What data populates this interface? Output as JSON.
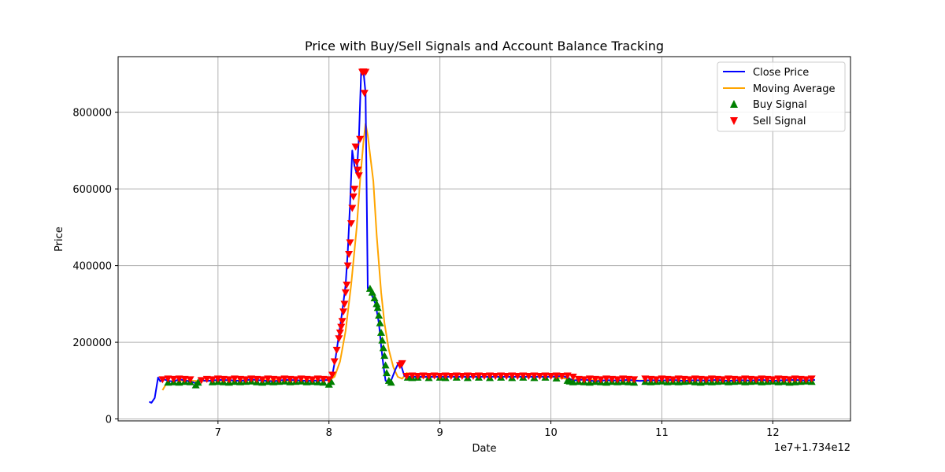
{
  "chart_data": {
    "type": "line",
    "title": "Price with Buy/Sell Signals and Account Balance Tracking",
    "xlabel": "Date",
    "ylabel": "Price",
    "x_offset_label": "1e7+1.734e12",
    "xlim": [
      6.1,
      12.7
    ],
    "ylim": [
      -5000,
      945000
    ],
    "x_ticks": [
      7,
      8,
      9,
      10,
      11,
      12
    ],
    "x_tick_labels": [
      "7",
      "8",
      "9",
      "10",
      "11",
      "12"
    ],
    "y_ticks": [
      0,
      200000,
      400000,
      600000,
      800000
    ],
    "y_tick_labels": [
      "0",
      "200000",
      "400000",
      "600000",
      "800000"
    ],
    "grid": true,
    "legend_position": "top-right",
    "legend": [
      "Close Price",
      "Moving Average",
      "Buy Signal",
      "Sell Signal"
    ],
    "colors": {
      "close": "#0000ff",
      "moving_average": "#ffa500",
      "buy": "#008000",
      "sell": "#ff0000"
    },
    "series": [
      {
        "name": "Close Price",
        "kind": "line",
        "x": [
          6.38,
          6.4,
          6.43,
          6.46,
          6.48,
          6.5,
          6.55,
          6.6,
          6.65,
          6.7,
          6.75,
          6.8,
          6.85,
          6.9,
          6.95,
          7.0,
          7.1,
          7.2,
          7.3,
          7.4,
          7.5,
          7.6,
          7.7,
          7.8,
          7.9,
          8.0,
          8.03,
          8.06,
          8.09,
          8.12,
          8.15,
          8.17,
          8.19,
          8.21,
          8.23,
          8.25,
          8.27,
          8.29,
          8.31,
          8.33,
          8.35,
          8.37,
          8.39,
          8.42,
          8.45,
          8.47,
          8.49,
          8.51,
          8.53,
          8.56,
          8.6,
          8.63,
          8.65,
          8.68,
          8.72,
          8.8,
          9.0,
          9.2,
          9.4,
          9.6,
          9.8,
          10.0,
          10.1,
          10.15,
          10.2,
          10.3,
          10.4,
          10.5,
          10.6,
          10.7,
          10.8,
          10.9,
          11.0,
          11.1,
          11.2,
          11.3,
          11.4,
          11.5,
          11.6,
          11.7,
          11.8,
          11.9,
          12.0,
          12.1,
          12.2,
          12.3,
          12.38
        ],
        "y": [
          45000,
          42000,
          55000,
          108000,
          98000,
          104000,
          100000,
          97000,
          104000,
          100000,
          98000,
          93000,
          101000,
          99000,
          100000,
          102000,
          101000,
          99000,
          103000,
          100000,
          98000,
          102000,
          101000,
          99000,
          100000,
          102000,
          115000,
          160000,
          220000,
          280000,
          350000,
          440000,
          560000,
          700000,
          660000,
          640000,
          735000,
          905000,
          910000,
          850000,
          340000,
          335000,
          320000,
          300000,
          250000,
          190000,
          140000,
          100000,
          95000,
          100000,
          130000,
          148000,
          140000,
          112000,
          110000,
          110000,
          110000,
          110000,
          110000,
          110000,
          110000,
          110000,
          112000,
          108000,
          100000,
          103000,
          98000,
          101000,
          100000,
          102000,
          99000,
          101000,
          100000,
          102000,
          99000,
          101000,
          100000,
          102000,
          99000,
          101000,
          100000,
          102000,
          99000,
          101000,
          102000,
          100000,
          102000
        ]
      },
      {
        "name": "Moving Average",
        "kind": "line",
        "x": [
          6.5,
          6.53,
          6.56,
          6.6,
          6.7,
          6.8,
          6.9,
          7.0,
          7.2,
          7.4,
          7.6,
          7.8,
          8.0,
          8.05,
          8.1,
          8.15,
          8.2,
          8.25,
          8.28,
          8.31,
          8.33,
          8.35,
          8.37,
          8.4,
          8.43,
          8.47,
          8.5,
          8.54,
          8.58,
          8.62,
          8.66,
          8.7,
          8.74,
          8.8,
          9.0,
          9.5,
          10.0,
          10.2,
          10.5,
          11.0,
          11.5,
          12.0,
          12.38
        ],
        "y": [
          75000,
          90000,
          98000,
          100000,
          100000,
          99000,
          99000,
          100000,
          100000,
          101000,
          100000,
          100000,
          101000,
          110000,
          150000,
          230000,
          350000,
          500000,
          620000,
          720000,
          770000,
          740000,
          690000,
          620000,
          480000,
          330000,
          250000,
          180000,
          135000,
          110000,
          105000,
          120000,
          115000,
          108000,
          110000,
          110000,
          110000,
          103000,
          100000,
          100000,
          100000,
          100000,
          101000
        ]
      },
      {
        "name": "Buy Signal",
        "kind": "scatter",
        "marker": "triangle-up",
        "x": [
          6.55,
          6.6,
          6.65,
          6.7,
          6.75,
          6.8,
          6.82,
          6.95,
          7.0,
          7.05,
          7.1,
          7.15,
          7.2,
          7.25,
          7.3,
          7.35,
          7.4,
          7.45,
          7.5,
          7.55,
          7.6,
          7.65,
          7.7,
          7.75,
          7.8,
          7.85,
          7.9,
          7.95,
          8.0,
          8.02,
          8.37,
          8.39,
          8.41,
          8.43,
          8.44,
          8.45,
          8.46,
          8.47,
          8.48,
          8.49,
          8.5,
          8.51,
          8.52,
          8.54,
          8.56,
          8.71,
          8.75,
          8.8,
          8.9,
          9.0,
          9.05,
          9.15,
          9.25,
          9.35,
          9.45,
          9.55,
          9.65,
          9.75,
          9.85,
          9.95,
          10.05,
          10.15,
          10.17,
          10.2,
          10.25,
          10.3,
          10.35,
          10.4,
          10.45,
          10.5,
          10.55,
          10.6,
          10.65,
          10.7,
          10.75,
          10.85,
          10.9,
          10.95,
          11.0,
          11.05,
          11.1,
          11.15,
          11.2,
          11.25,
          11.3,
          11.35,
          11.4,
          11.45,
          11.5,
          11.55,
          11.6,
          11.65,
          11.7,
          11.75,
          11.8,
          11.85,
          11.9,
          11.95,
          12.0,
          12.05,
          12.1,
          12.15,
          12.2,
          12.25,
          12.3,
          12.35
        ],
        "y": [
          95000,
          96000,
          95000,
          97000,
          96000,
          88000,
          95000,
          96000,
          97000,
          96000,
          95000,
          97000,
          96000,
          97000,
          98000,
          96000,
          95000,
          97000,
          96000,
          97000,
          98000,
          96000,
          97000,
          98000,
          96000,
          97000,
          96000,
          95000,
          90000,
          97000,
          340000,
          330000,
          315000,
          300000,
          290000,
          270000,
          250000,
          225000,
          205000,
          185000,
          165000,
          140000,
          120000,
          100000,
          95000,
          108000,
          107000,
          108000,
          107000,
          108000,
          107000,
          108000,
          107000,
          108000,
          107000,
          108000,
          107000,
          108000,
          107000,
          108000,
          106000,
          100000,
          98000,
          96000,
          97000,
          96000,
          95000,
          97000,
          96000,
          95000,
          97000,
          96000,
          97000,
          96000,
          95000,
          97000,
          96000,
          97000,
          98000,
          96000,
          97000,
          96000,
          97000,
          98000,
          96000,
          95000,
          97000,
          96000,
          97000,
          98000,
          96000,
          97000,
          98000,
          96000,
          97000,
          98000,
          96000,
          97000,
          98000,
          96000,
          97000,
          95000,
          96000,
          97000,
          98000,
          97000
        ]
      },
      {
        "name": "Sell Signal",
        "kind": "scatter",
        "marker": "triangle-down",
        "x": [
          6.5,
          6.55,
          6.6,
          6.65,
          6.7,
          6.75,
          6.85,
          6.9,
          6.95,
          7.0,
          7.05,
          7.1,
          7.15,
          7.2,
          7.25,
          7.3,
          7.35,
          7.4,
          7.45,
          7.5,
          7.55,
          7.6,
          7.65,
          7.7,
          7.75,
          7.8,
          7.85,
          7.9,
          7.95,
          8.0,
          8.03,
          8.05,
          8.07,
          8.09,
          8.1,
          8.11,
          8.12,
          8.13,
          8.14,
          8.15,
          8.16,
          8.17,
          8.18,
          8.19,
          8.2,
          8.21,
          8.22,
          8.23,
          8.24,
          8.25,
          8.26,
          8.27,
          8.28,
          8.3,
          8.31,
          8.32,
          8.33,
          8.64,
          8.66,
          8.7,
          8.75,
          8.8,
          8.85,
          8.9,
          8.95,
          9.0,
          9.05,
          9.1,
          9.15,
          9.2,
          9.25,
          9.3,
          9.35,
          9.4,
          9.45,
          9.5,
          9.55,
          9.6,
          9.65,
          9.7,
          9.75,
          9.8,
          9.85,
          9.9,
          9.95,
          10.0,
          10.05,
          10.1,
          10.15,
          10.2,
          10.25,
          10.3,
          10.35,
          10.4,
          10.45,
          10.5,
          10.55,
          10.6,
          10.65,
          10.7,
          10.75,
          10.85,
          10.9,
          10.95,
          11.0,
          11.05,
          11.1,
          11.15,
          11.2,
          11.25,
          11.3,
          11.35,
          11.4,
          11.45,
          11.5,
          11.55,
          11.6,
          11.65,
          11.7,
          11.75,
          11.8,
          11.85,
          11.9,
          11.95,
          12.0,
          12.05,
          12.1,
          12.15,
          12.2,
          12.25,
          12.3,
          12.35
        ],
        "y": [
          103000,
          105000,
          104000,
          105000,
          104000,
          103000,
          101000,
          104000,
          103000,
          105000,
          104000,
          103000,
          105000,
          104000,
          103000,
          105000,
          104000,
          103000,
          105000,
          104000,
          103000,
          105000,
          104000,
          103000,
          105000,
          104000,
          103000,
          105000,
          104000,
          103000,
          115000,
          150000,
          180000,
          210000,
          225000,
          240000,
          255000,
          280000,
          300000,
          330000,
          350000,
          400000,
          430000,
          460000,
          510000,
          550000,
          580000,
          600000,
          710000,
          670000,
          650000,
          635000,
          730000,
          905000,
          906000,
          850000,
          905000,
          140000,
          145000,
          112000,
          113000,
          112000,
          113000,
          112000,
          113000,
          112000,
          113000,
          112000,
          113000,
          112000,
          113000,
          112000,
          113000,
          112000,
          113000,
          112000,
          113000,
          112000,
          113000,
          112000,
          113000,
          112000,
          113000,
          112000,
          113000,
          112000,
          113000,
          112000,
          113000,
          110000,
          104000,
          103000,
          105000,
          104000,
          103000,
          105000,
          104000,
          103000,
          105000,
          104000,
          103000,
          105000,
          104000,
          103000,
          105000,
          104000,
          103000,
          105000,
          104000,
          103000,
          105000,
          104000,
          103000,
          105000,
          104000,
          103000,
          105000,
          104000,
          103000,
          105000,
          104000,
          103000,
          105000,
          104000,
          103000,
          105000,
          104000,
          103000,
          105000,
          104000,
          103000,
          105000
        ]
      }
    ]
  }
}
